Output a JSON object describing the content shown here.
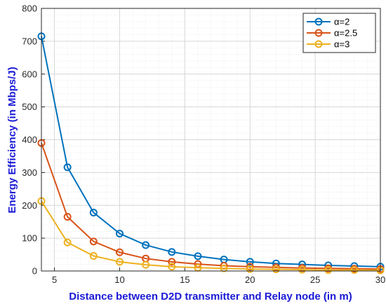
{
  "chart_data": {
    "type": "line",
    "title": "",
    "xlabel": "Distance between D2D transmitter and Relay node (in m)",
    "ylabel": "Energy Efficiency (in Mbps/J)",
    "xlim": [
      4,
      30
    ],
    "ylim": [
      0,
      800
    ],
    "xticks": [
      5,
      10,
      15,
      20,
      25,
      30
    ],
    "yticks": [
      0,
      100,
      200,
      300,
      400,
      500,
      600,
      700,
      800
    ],
    "grid": true,
    "minor_grid": true,
    "legend_position": "top-right",
    "marker": "circle",
    "x": [
      4,
      6,
      8,
      10,
      12,
      14,
      16,
      18,
      20,
      22,
      24,
      26,
      28,
      30
    ],
    "series": [
      {
        "name": "α=2",
        "color": "#0072bd",
        "values": [
          715,
          316,
          178,
          114,
          79,
          58,
          45,
          35,
          28,
          23,
          20,
          17,
          15,
          13
        ]
      },
      {
        "name": "α=2.5",
        "color": "#d95319",
        "values": [
          390,
          165,
          90,
          57,
          38,
          28,
          21,
          16,
          13,
          11,
          9,
          8,
          7,
          6
        ]
      },
      {
        "name": "α=3",
        "color": "#edb120",
        "values": [
          213,
          87,
          46,
          28,
          19,
          13,
          10,
          8,
          6,
          5,
          4,
          3,
          3,
          2
        ]
      }
    ]
  }
}
